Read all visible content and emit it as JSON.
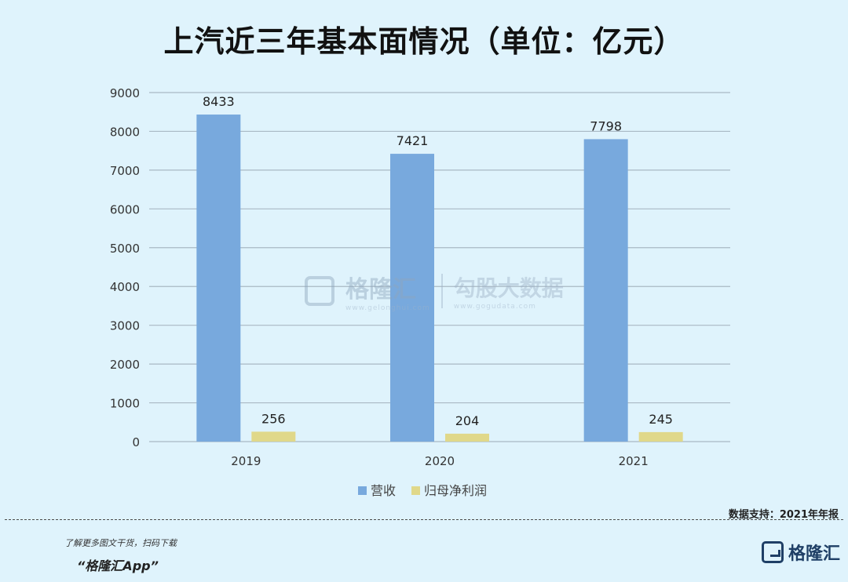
{
  "title": "上汽近三年基本面情况（单位：亿元）",
  "source": "数据支持：2021年年报",
  "promo": "了解更多图文干货，扫码下载",
  "app_name": "“格隆汇App”",
  "logo_text": "格隆汇",
  "watermark": {
    "brand": "格隆汇",
    "brand_url": "www.gelonghui.com",
    "sub": "勾股大数据",
    "sub_url": "www.gogudata.com"
  },
  "colors": {
    "revenue": "#78a9dd",
    "profit": "#e0d88a",
    "grid": "#a9b8c4",
    "background": "#dff3fc"
  },
  "chart_data": {
    "type": "bar",
    "categories": [
      "2019",
      "2020",
      "2021"
    ],
    "series": [
      {
        "name": "营收",
        "values": [
          8433,
          7421,
          7798
        ]
      },
      {
        "name": "归母净利润",
        "values": [
          256,
          204,
          245
        ]
      }
    ],
    "ylim": [
      0,
      9000
    ],
    "yticks": [
      0,
      1000,
      2000,
      3000,
      4000,
      5000,
      6000,
      7000,
      8000,
      9000
    ],
    "grid": true,
    "legend": "bottom-center"
  }
}
